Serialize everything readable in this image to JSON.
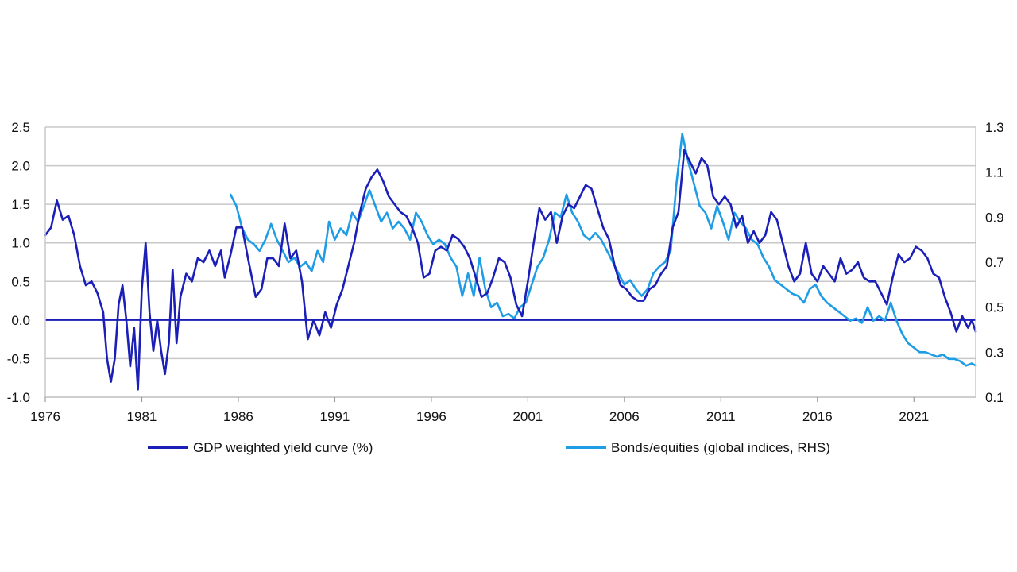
{
  "chart_data": {
    "type": "line",
    "title": "",
    "xlabel": "",
    "ylabel_left": "",
    "ylabel_right": "",
    "x_ticks": [
      "1976",
      "1981",
      "1986",
      "1991",
      "1996",
      "2001",
      "2006",
      "2011",
      "2016",
      "2021"
    ],
    "x_range": [
      1976,
      2024.2
    ],
    "left_axis": {
      "ylim": [
        -1.0,
        2.5
      ],
      "ticks": [
        "2.5",
        "2.0",
        "1.5",
        "1.0",
        "0.5",
        "0.0",
        "-0.5",
        "-1.0"
      ],
      "tick_values": [
        2.5,
        2.0,
        1.5,
        1.0,
        0.5,
        0.0,
        -0.5,
        -1.0
      ]
    },
    "right_axis": {
      "ylim": [
        0.1,
        1.3
      ],
      "ticks": [
        "1.3",
        "1.1",
        "0.9",
        "0.7",
        "0.5",
        "0.3",
        "0.1"
      ],
      "tick_values": [
        1.3,
        1.1,
        0.9,
        0.7,
        0.5,
        0.3,
        0.1
      ]
    },
    "zero_line": 0.0,
    "grid": "horizontal",
    "legend_position": "bottom",
    "series": [
      {
        "name": "GDP weighted yield curve (%)",
        "axis": "left",
        "color": "#1b1fb8",
        "points": [
          [
            1976.0,
            1.1
          ],
          [
            1976.3,
            1.2
          ],
          [
            1976.6,
            1.55
          ],
          [
            1976.9,
            1.3
          ],
          [
            1977.2,
            1.35
          ],
          [
            1977.5,
            1.1
          ],
          [
            1977.8,
            0.7
          ],
          [
            1978.1,
            0.45
          ],
          [
            1978.4,
            0.5
          ],
          [
            1978.7,
            0.35
          ],
          [
            1979.0,
            0.1
          ],
          [
            1979.2,
            -0.5
          ],
          [
            1979.4,
            -0.8
          ],
          [
            1979.6,
            -0.5
          ],
          [
            1979.8,
            0.2
          ],
          [
            1980.0,
            0.45
          ],
          [
            1980.2,
            0.0
          ],
          [
            1980.4,
            -0.6
          ],
          [
            1980.6,
            -0.1
          ],
          [
            1980.8,
            -0.9
          ],
          [
            1981.0,
            0.4
          ],
          [
            1981.2,
            1.0
          ],
          [
            1981.4,
            0.1
          ],
          [
            1981.6,
            -0.4
          ],
          [
            1981.8,
            0.0
          ],
          [
            1982.0,
            -0.4
          ],
          [
            1982.2,
            -0.7
          ],
          [
            1982.4,
            -0.3
          ],
          [
            1982.6,
            0.65
          ],
          [
            1982.8,
            -0.3
          ],
          [
            1983.0,
            0.3
          ],
          [
            1983.3,
            0.6
          ],
          [
            1983.6,
            0.5
          ],
          [
            1983.9,
            0.8
          ],
          [
            1984.2,
            0.75
          ],
          [
            1984.5,
            0.9
          ],
          [
            1984.8,
            0.7
          ],
          [
            1985.1,
            0.9
          ],
          [
            1985.3,
            0.55
          ],
          [
            1985.6,
            0.85
          ],
          [
            1985.9,
            1.2
          ],
          [
            1986.2,
            1.2
          ],
          [
            1986.5,
            0.8
          ],
          [
            1986.7,
            0.55
          ],
          [
            1986.9,
            0.3
          ],
          [
            1987.2,
            0.4
          ],
          [
            1987.5,
            0.8
          ],
          [
            1987.8,
            0.8
          ],
          [
            1988.1,
            0.7
          ],
          [
            1988.4,
            1.25
          ],
          [
            1988.7,
            0.8
          ],
          [
            1989.0,
            0.9
          ],
          [
            1989.3,
            0.5
          ],
          [
            1989.6,
            -0.25
          ],
          [
            1989.9,
            0.0
          ],
          [
            1990.2,
            -0.2
          ],
          [
            1990.5,
            0.1
          ],
          [
            1990.8,
            -0.1
          ],
          [
            1991.1,
            0.2
          ],
          [
            1991.4,
            0.4
          ],
          [
            1991.7,
            0.7
          ],
          [
            1992.0,
            1.0
          ],
          [
            1992.3,
            1.4
          ],
          [
            1992.6,
            1.7
          ],
          [
            1992.9,
            1.85
          ],
          [
            1993.2,
            1.95
          ],
          [
            1993.5,
            1.8
          ],
          [
            1993.8,
            1.6
          ],
          [
            1994.1,
            1.5
          ],
          [
            1994.4,
            1.4
          ],
          [
            1994.7,
            1.35
          ],
          [
            1995.0,
            1.2
          ],
          [
            1995.3,
            1.0
          ],
          [
            1995.6,
            0.55
          ],
          [
            1995.9,
            0.6
          ],
          [
            1996.2,
            0.9
          ],
          [
            1996.5,
            0.95
          ],
          [
            1996.8,
            0.9
          ],
          [
            1997.1,
            1.1
          ],
          [
            1997.4,
            1.05
          ],
          [
            1997.7,
            0.95
          ],
          [
            1998.0,
            0.8
          ],
          [
            1998.3,
            0.55
          ],
          [
            1998.6,
            0.3
          ],
          [
            1998.9,
            0.35
          ],
          [
            1999.2,
            0.55
          ],
          [
            1999.5,
            0.8
          ],
          [
            1999.8,
            0.75
          ],
          [
            2000.1,
            0.55
          ],
          [
            2000.4,
            0.2
          ],
          [
            2000.7,
            0.05
          ],
          [
            2001.0,
            0.5
          ],
          [
            2001.3,
            1.0
          ],
          [
            2001.6,
            1.45
          ],
          [
            2001.9,
            1.3
          ],
          [
            2002.2,
            1.4
          ],
          [
            2002.5,
            1.0
          ],
          [
            2002.8,
            1.35
          ],
          [
            2003.1,
            1.5
          ],
          [
            2003.4,
            1.45
          ],
          [
            2003.7,
            1.6
          ],
          [
            2004.0,
            1.75
          ],
          [
            2004.3,
            1.7
          ],
          [
            2004.6,
            1.45
          ],
          [
            2004.9,
            1.2
          ],
          [
            2005.2,
            1.05
          ],
          [
            2005.5,
            0.7
          ],
          [
            2005.8,
            0.45
          ],
          [
            2006.1,
            0.4
          ],
          [
            2006.4,
            0.3
          ],
          [
            2006.7,
            0.25
          ],
          [
            2007.0,
            0.25
          ],
          [
            2007.3,
            0.4
          ],
          [
            2007.6,
            0.45
          ],
          [
            2007.9,
            0.6
          ],
          [
            2008.2,
            0.7
          ],
          [
            2008.5,
            1.2
          ],
          [
            2008.8,
            1.4
          ],
          [
            2009.1,
            2.2
          ],
          [
            2009.4,
            2.05
          ],
          [
            2009.7,
            1.9
          ],
          [
            2010.0,
            2.1
          ],
          [
            2010.3,
            2.0
          ],
          [
            2010.6,
            1.6
          ],
          [
            2010.9,
            1.5
          ],
          [
            2011.2,
            1.6
          ],
          [
            2011.5,
            1.5
          ],
          [
            2011.8,
            1.2
          ],
          [
            2012.1,
            1.35
          ],
          [
            2012.4,
            1.0
          ],
          [
            2012.7,
            1.15
          ],
          [
            2013.0,
            1.0
          ],
          [
            2013.3,
            1.1
          ],
          [
            2013.6,
            1.4
          ],
          [
            2013.9,
            1.3
          ],
          [
            2014.2,
            1.0
          ],
          [
            2014.5,
            0.7
          ],
          [
            2014.8,
            0.5
          ],
          [
            2015.1,
            0.6
          ],
          [
            2015.4,
            1.0
          ],
          [
            2015.7,
            0.6
          ],
          [
            2016.0,
            0.5
          ],
          [
            2016.3,
            0.7
          ],
          [
            2016.6,
            0.6
          ],
          [
            2016.9,
            0.5
          ],
          [
            2017.2,
            0.8
          ],
          [
            2017.5,
            0.6
          ],
          [
            2017.8,
            0.65
          ],
          [
            2018.1,
            0.75
          ],
          [
            2018.4,
            0.55
          ],
          [
            2018.7,
            0.5
          ],
          [
            2019.0,
            0.5
          ],
          [
            2019.3,
            0.35
          ],
          [
            2019.6,
            0.2
          ],
          [
            2019.9,
            0.55
          ],
          [
            2020.2,
            0.85
          ],
          [
            2020.5,
            0.75
          ],
          [
            2020.8,
            0.8
          ],
          [
            2021.1,
            0.95
          ],
          [
            2021.4,
            0.9
          ],
          [
            2021.7,
            0.8
          ],
          [
            2022.0,
            0.6
          ],
          [
            2022.3,
            0.55
          ],
          [
            2022.6,
            0.3
          ],
          [
            2022.9,
            0.1
          ],
          [
            2023.2,
            -0.15
          ],
          [
            2023.5,
            0.05
          ],
          [
            2023.8,
            -0.1
          ],
          [
            2024.0,
            0.0
          ],
          [
            2024.2,
            -0.15
          ]
        ]
      },
      {
        "name": "Bonds/equities (global indices, RHS)",
        "axis": "right",
        "color": "#1e9de6",
        "points": [
          [
            1985.6,
            1.0
          ],
          [
            1985.9,
            0.95
          ],
          [
            1986.2,
            0.85
          ],
          [
            1986.5,
            0.8
          ],
          [
            1986.8,
            0.78
          ],
          [
            1987.1,
            0.75
          ],
          [
            1987.4,
            0.8
          ],
          [
            1987.7,
            0.87
          ],
          [
            1988.0,
            0.8
          ],
          [
            1988.3,
            0.75
          ],
          [
            1988.6,
            0.7
          ],
          [
            1988.9,
            0.72
          ],
          [
            1989.2,
            0.68
          ],
          [
            1989.5,
            0.7
          ],
          [
            1989.8,
            0.66
          ],
          [
            1990.1,
            0.75
          ],
          [
            1990.4,
            0.7
          ],
          [
            1990.7,
            0.88
          ],
          [
            1991.0,
            0.8
          ],
          [
            1991.3,
            0.85
          ],
          [
            1991.6,
            0.82
          ],
          [
            1991.9,
            0.92
          ],
          [
            1992.2,
            0.88
          ],
          [
            1992.5,
            0.95
          ],
          [
            1992.8,
            1.02
          ],
          [
            1993.1,
            0.95
          ],
          [
            1993.4,
            0.88
          ],
          [
            1993.7,
            0.92
          ],
          [
            1994.0,
            0.85
          ],
          [
            1994.3,
            0.88
          ],
          [
            1994.6,
            0.85
          ],
          [
            1994.9,
            0.8
          ],
          [
            1995.2,
            0.92
          ],
          [
            1995.5,
            0.88
          ],
          [
            1995.8,
            0.82
          ],
          [
            1996.1,
            0.78
          ],
          [
            1996.4,
            0.8
          ],
          [
            1996.7,
            0.78
          ],
          [
            1997.0,
            0.72
          ],
          [
            1997.3,
            0.68
          ],
          [
            1997.6,
            0.55
          ],
          [
            1997.9,
            0.65
          ],
          [
            1998.2,
            0.55
          ],
          [
            1998.5,
            0.72
          ],
          [
            1998.8,
            0.58
          ],
          [
            1999.1,
            0.5
          ],
          [
            1999.4,
            0.52
          ],
          [
            1999.7,
            0.46
          ],
          [
            2000.0,
            0.47
          ],
          [
            2000.3,
            0.45
          ],
          [
            2000.6,
            0.5
          ],
          [
            2000.9,
            0.52
          ],
          [
            2001.2,
            0.6
          ],
          [
            2001.5,
            0.68
          ],
          [
            2001.8,
            0.72
          ],
          [
            2002.1,
            0.8
          ],
          [
            2002.4,
            0.92
          ],
          [
            2002.7,
            0.9
          ],
          [
            2003.0,
            1.0
          ],
          [
            2003.3,
            0.92
          ],
          [
            2003.6,
            0.88
          ],
          [
            2003.9,
            0.82
          ],
          [
            2004.2,
            0.8
          ],
          [
            2004.5,
            0.83
          ],
          [
            2004.8,
            0.8
          ],
          [
            2005.1,
            0.75
          ],
          [
            2005.4,
            0.7
          ],
          [
            2005.7,
            0.65
          ],
          [
            2006.0,
            0.6
          ],
          [
            2006.3,
            0.62
          ],
          [
            2006.6,
            0.58
          ],
          [
            2006.9,
            0.55
          ],
          [
            2007.2,
            0.58
          ],
          [
            2007.5,
            0.65
          ],
          [
            2007.8,
            0.68
          ],
          [
            2008.1,
            0.7
          ],
          [
            2008.4,
            0.75
          ],
          [
            2008.7,
            1.05
          ],
          [
            2009.0,
            1.27
          ],
          [
            2009.3,
            1.15
          ],
          [
            2009.6,
            1.05
          ],
          [
            2009.9,
            0.95
          ],
          [
            2010.2,
            0.92
          ],
          [
            2010.5,
            0.85
          ],
          [
            2010.8,
            0.95
          ],
          [
            2011.1,
            0.88
          ],
          [
            2011.4,
            0.8
          ],
          [
            2011.7,
            0.92
          ],
          [
            2012.0,
            0.88
          ],
          [
            2012.3,
            0.85
          ],
          [
            2012.6,
            0.8
          ],
          [
            2012.9,
            0.78
          ],
          [
            2013.2,
            0.72
          ],
          [
            2013.5,
            0.68
          ],
          [
            2013.8,
            0.62
          ],
          [
            2014.1,
            0.6
          ],
          [
            2014.4,
            0.58
          ],
          [
            2014.7,
            0.56
          ],
          [
            2015.0,
            0.55
          ],
          [
            2015.3,
            0.52
          ],
          [
            2015.6,
            0.58
          ],
          [
            2015.9,
            0.6
          ],
          [
            2016.2,
            0.55
          ],
          [
            2016.5,
            0.52
          ],
          [
            2016.8,
            0.5
          ],
          [
            2017.1,
            0.48
          ],
          [
            2017.4,
            0.46
          ],
          [
            2017.7,
            0.44
          ],
          [
            2018.0,
            0.45
          ],
          [
            2018.3,
            0.43
          ],
          [
            2018.6,
            0.5
          ],
          [
            2018.9,
            0.44
          ],
          [
            2019.2,
            0.46
          ],
          [
            2019.5,
            0.44
          ],
          [
            2019.8,
            0.52
          ],
          [
            2020.1,
            0.44
          ],
          [
            2020.4,
            0.38
          ],
          [
            2020.7,
            0.34
          ],
          [
            2021.0,
            0.32
          ],
          [
            2021.3,
            0.3
          ],
          [
            2021.6,
            0.3
          ],
          [
            2021.9,
            0.29
          ],
          [
            2022.2,
            0.28
          ],
          [
            2022.5,
            0.29
          ],
          [
            2022.8,
            0.27
          ],
          [
            2023.1,
            0.27
          ],
          [
            2023.4,
            0.26
          ],
          [
            2023.7,
            0.24
          ],
          [
            2024.0,
            0.25
          ],
          [
            2024.2,
            0.24
          ]
        ]
      }
    ]
  }
}
